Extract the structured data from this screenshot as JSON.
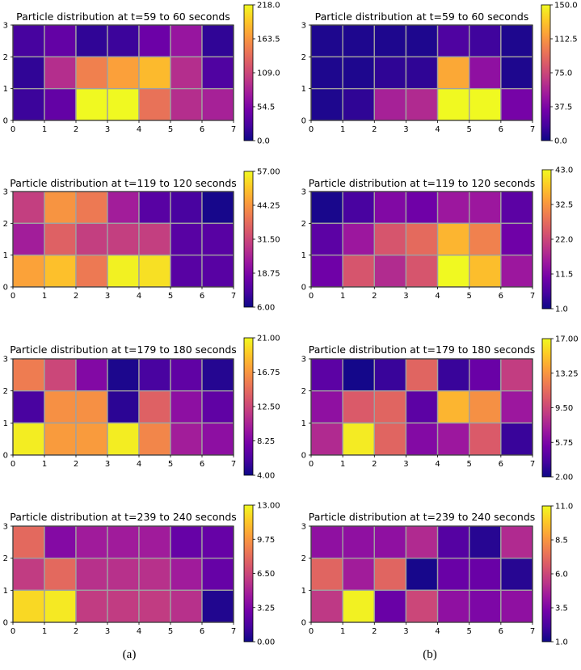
{
  "captions": {
    "a": "(a)",
    "b": "(b)"
  },
  "colormap": [
    "#0d0887",
    "#46039f",
    "#7201a8",
    "#9c179e",
    "#bd3786",
    "#d8576b",
    "#ed7953",
    "#fb9f3a",
    "#fdca26",
    "#f0f921"
  ],
  "cell_border_color": "#a0a0a0",
  "chart_data": [
    {
      "type": "heatmap",
      "panel": "a",
      "title": "Particle distribution at t=59 to 60 seconds",
      "xticks": [
        "0",
        "1",
        "2",
        "3",
        "4",
        "5",
        "6",
        "7"
      ],
      "yticks": [
        "0",
        "1",
        "2",
        "3"
      ],
      "vmin": 0,
      "vmax": 218,
      "colorbar_ticks": [
        "218.0",
        "163.5",
        "109.0",
        "54.5",
        "0.0"
      ],
      "rows_top_to_bottom": [
        [
          25,
          40,
          15,
          20,
          45,
          70,
          15
        ],
        [
          15,
          90,
          150,
          170,
          185,
          90,
          30
        ],
        [
          20,
          40,
          218,
          218,
          140,
          90,
          80
        ]
      ]
    },
    {
      "type": "heatmap",
      "panel": "b",
      "title": "Particle distribution at t=59 to 60 seconds",
      "xticks": [
        "0",
        "1",
        "2",
        "3",
        "4",
        "5",
        "6",
        "7"
      ],
      "yticks": [
        "0",
        "1",
        "2",
        "3"
      ],
      "vmin": 0,
      "vmax": 150,
      "colorbar_ticks": [
        "150.0",
        "112.5",
        "75.0",
        "37.5",
        "0.0"
      ],
      "rows_top_to_bottom": [
        [
          5,
          5,
          5,
          5,
          20,
          15,
          5
        ],
        [
          5,
          5,
          10,
          10,
          120,
          45,
          5
        ],
        [
          5,
          10,
          55,
          60,
          150,
          150,
          35
        ]
      ]
    },
    {
      "type": "heatmap",
      "panel": "a",
      "title": "Particle distribution at t=119 to 120 seconds",
      "xticks": [
        "0",
        "1",
        "2",
        "3",
        "4",
        "5",
        "6",
        "7"
      ],
      "yticks": [
        "0",
        "1",
        "2",
        "3"
      ],
      "vmin": 6,
      "vmax": 57,
      "colorbar_ticks": [
        "57.00",
        "44.25",
        "31.50",
        "18.75",
        "6.00"
      ],
      "rows_top_to_bottom": [
        [
          30,
          44,
          40,
          24,
          14,
          12,
          7
        ],
        [
          24,
          36,
          30,
          30,
          30,
          14,
          14
        ],
        [
          46,
          50,
          40,
          56,
          54,
          14,
          14
        ]
      ]
    },
    {
      "type": "heatmap",
      "panel": "b",
      "title": "Particle distribution at t=119 to 120 seconds",
      "xticks": [
        "0",
        "1",
        "2",
        "3",
        "4",
        "5",
        "6",
        "7"
      ],
      "yticks": [
        "0",
        "1",
        "2",
        "3"
      ],
      "vmin": 1,
      "vmax": 43,
      "colorbar_ticks": [
        "43.0",
        "32.5",
        "22.0",
        "11.5",
        "1.0"
      ],
      "rows_top_to_bottom": [
        [
          2,
          6,
          12,
          10,
          15,
          15,
          8
        ],
        [
          8,
          15,
          24,
          27,
          36,
          30,
          10
        ],
        [
          10,
          24,
          18,
          24,
          43,
          37,
          15
        ]
      ]
    },
    {
      "type": "heatmap",
      "panel": "a",
      "title": "Particle distribution at t=179 to 180 seconds",
      "xticks": [
        "0",
        "1",
        "2",
        "3",
        "4",
        "5",
        "6",
        "7"
      ],
      "yticks": [
        "0",
        "1",
        "2",
        "3"
      ],
      "vmin": 4,
      "vmax": 21,
      "colorbar_ticks": [
        "21.00",
        "16.75",
        "12.50",
        "8.25",
        "4.00"
      ],
      "rows_top_to_bottom": [
        [
          15.5,
          12.5,
          8.5,
          4.5,
          6,
          7,
          4.8
        ],
        [
          6,
          16.5,
          16.5,
          5,
          14,
          9,
          7
        ],
        [
          20.5,
          17,
          17,
          20.5,
          16,
          10,
          9
        ]
      ]
    },
    {
      "type": "heatmap",
      "panel": "b",
      "title": "Particle distribution at t=179 to 180 seconds",
      "xticks": [
        "0",
        "1",
        "2",
        "3",
        "4",
        "5",
        "6",
        "7"
      ],
      "yticks": [
        "0",
        "1",
        "2",
        "3"
      ],
      "vmin": 2,
      "vmax": 17,
      "colorbar_ticks": [
        "17.00",
        "13.25",
        "9.50",
        "5.75",
        "2.00"
      ],
      "rows_top_to_bottom": [
        [
          4.5,
          2.2,
          3.3,
          11,
          3.3,
          5,
          9
        ],
        [
          6.5,
          10.5,
          11,
          4.5,
          14.5,
          13,
          7
        ],
        [
          8,
          16.5,
          11,
          6,
          7,
          10.5,
          3.3
        ]
      ]
    },
    {
      "type": "heatmap",
      "panel": "a",
      "title": "Particle distribution at t=239 to 240 seconds",
      "xticks": [
        "0",
        "1",
        "2",
        "3",
        "4",
        "5",
        "6",
        "7"
      ],
      "yticks": [
        "0",
        "1",
        "2",
        "3"
      ],
      "vmin": 0,
      "vmax": 13,
      "colorbar_ticks": [
        "13.00",
        "9.75",
        "6.50",
        "3.25",
        "0.00"
      ],
      "rows_top_to_bottom": [
        [
          8,
          3.5,
          4.5,
          4.5,
          4.5,
          2.5,
          2.5
        ],
        [
          6,
          8,
          5.5,
          5.5,
          5.5,
          4.5,
          2.5
        ],
        [
          12,
          12.5,
          6,
          6,
          6,
          5.5,
          0.5
        ]
      ]
    },
    {
      "type": "heatmap",
      "panel": "b",
      "title": "Particle distribution at t=239 to 240 seconds",
      "xticks": [
        "0",
        "1",
        "2",
        "3",
        "4",
        "5",
        "6",
        "7"
      ],
      "yticks": [
        "0",
        "1",
        "2",
        "3"
      ],
      "vmin": 1,
      "vmax": 11,
      "colorbar_ticks": [
        "11.0",
        "8.5",
        "6.0",
        "3.5",
        "1.0"
      ],
      "rows_top_to_bottom": [
        [
          4,
          4,
          4,
          5,
          2.5,
          1.5,
          5
        ],
        [
          7,
          4.5,
          7,
          1.2,
          3,
          3,
          1.5
        ],
        [
          5.5,
          10.8,
          3,
          6,
          4,
          3.5,
          4
        ]
      ]
    }
  ]
}
